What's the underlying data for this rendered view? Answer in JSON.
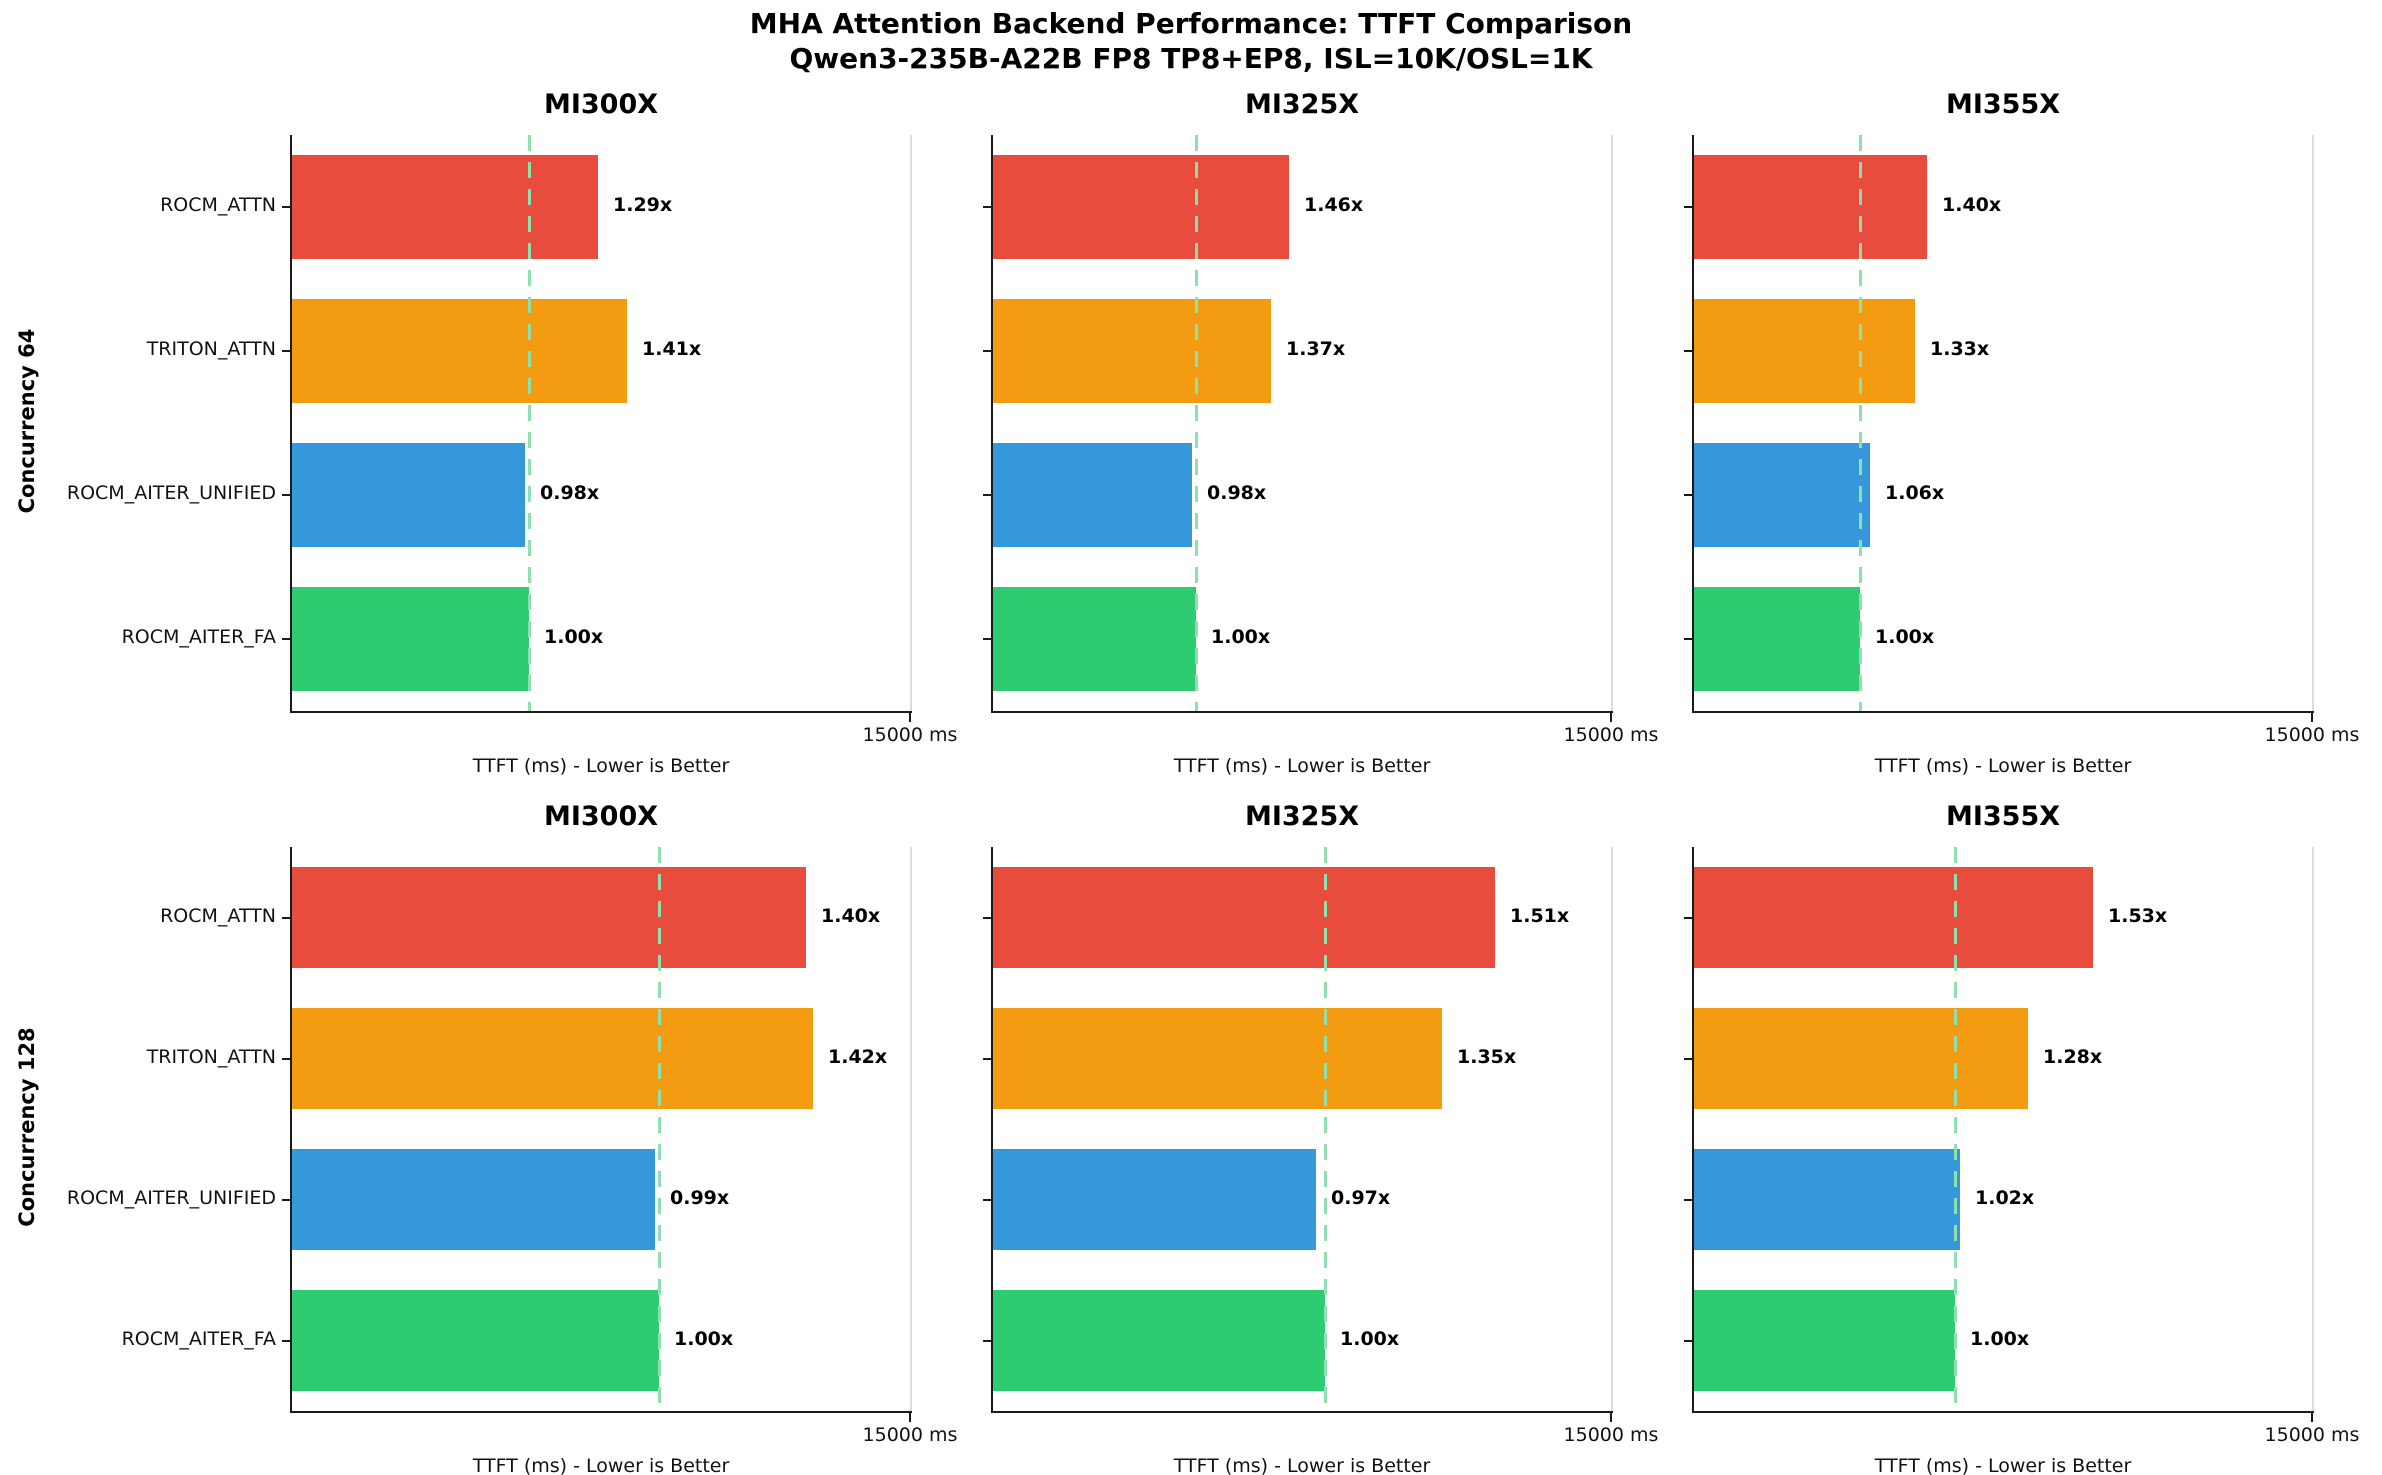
{
  "figure": {
    "title": "MHA Attention Backend Performance: TTFT Comparison",
    "subtitle": "Qwen3-235B-A22B FP8 TP8+EP8, ISL=10K/OSL=1K"
  },
  "colors": {
    "bar_red": "#e74c3c",
    "bar_orange": "#f39c12",
    "bar_blue": "#3498db",
    "bar_green": "#2ecc71",
    "baseline_dash": "#8fe0ae",
    "axis_spine": "#1a1a1a",
    "right_spine": "#dcdcdc",
    "text": "#000000"
  },
  "chart_data": {
    "type": "bar",
    "orientation": "horizontal",
    "title": "MHA Attention Backend Performance: TTFT Comparison",
    "subtitle": "Qwen3-235B-A22B FP8 TP8+EP8, ISL=10K/OSL=1K",
    "categories": [
      "ROCM_ATTN",
      "TRITON_ATTN",
      "ROCM_AITER_UNIFIED",
      "ROCM_AITER_FA"
    ],
    "bar_colors": [
      "#e74c3c",
      "#f39c12",
      "#3498db",
      "#2ecc71"
    ],
    "xlabel": "TTFT (ms) - Lower is Better",
    "xlim": [
      0,
      15000
    ],
    "x_tick_label": "15000 ms",
    "grid": false,
    "legend": "none",
    "baseline_marker": "vertical dashed line at ROCM_AITER_FA (1.00x) value",
    "rows": [
      {
        "label": "Concurrency 64",
        "panels": [
          {
            "title": "MI300X",
            "baseline_ms": 5760,
            "relative_values": [
              1.29,
              1.41,
              0.98,
              1.0
            ],
            "value_labels": [
              "1.29x",
              "1.41x",
              "0.98x",
              "1.00x"
            ]
          },
          {
            "title": "MI325X",
            "baseline_ms": 4920,
            "relative_values": [
              1.46,
              1.37,
              0.98,
              1.0
            ],
            "value_labels": [
              "1.46x",
              "1.37x",
              "0.98x",
              "1.00x"
            ]
          },
          {
            "title": "MI355X",
            "baseline_ms": 4040,
            "relative_values": [
              1.4,
              1.33,
              1.06,
              1.0
            ],
            "value_labels": [
              "1.40x",
              "1.33x",
              "1.06x",
              "1.00x"
            ]
          }
        ]
      },
      {
        "label": "Concurrency 128",
        "panels": [
          {
            "title": "MI300X",
            "baseline_ms": 8910,
            "relative_values": [
              1.4,
              1.42,
              0.99,
              1.0
            ],
            "value_labels": [
              "1.40x",
              "1.42x",
              "0.99x",
              "1.00x"
            ]
          },
          {
            "title": "MI325X",
            "baseline_ms": 8070,
            "relative_values": [
              1.51,
              1.35,
              0.97,
              1.0
            ],
            "value_labels": [
              "1.51x",
              "1.35x",
              "0.97x",
              "1.00x"
            ]
          },
          {
            "title": "MI355X",
            "baseline_ms": 6330,
            "relative_values": [
              1.53,
              1.28,
              1.02,
              1.0
            ],
            "value_labels": [
              "1.53x",
              "1.28x",
              "1.02x",
              "1.00x"
            ]
          }
        ]
      }
    ]
  }
}
